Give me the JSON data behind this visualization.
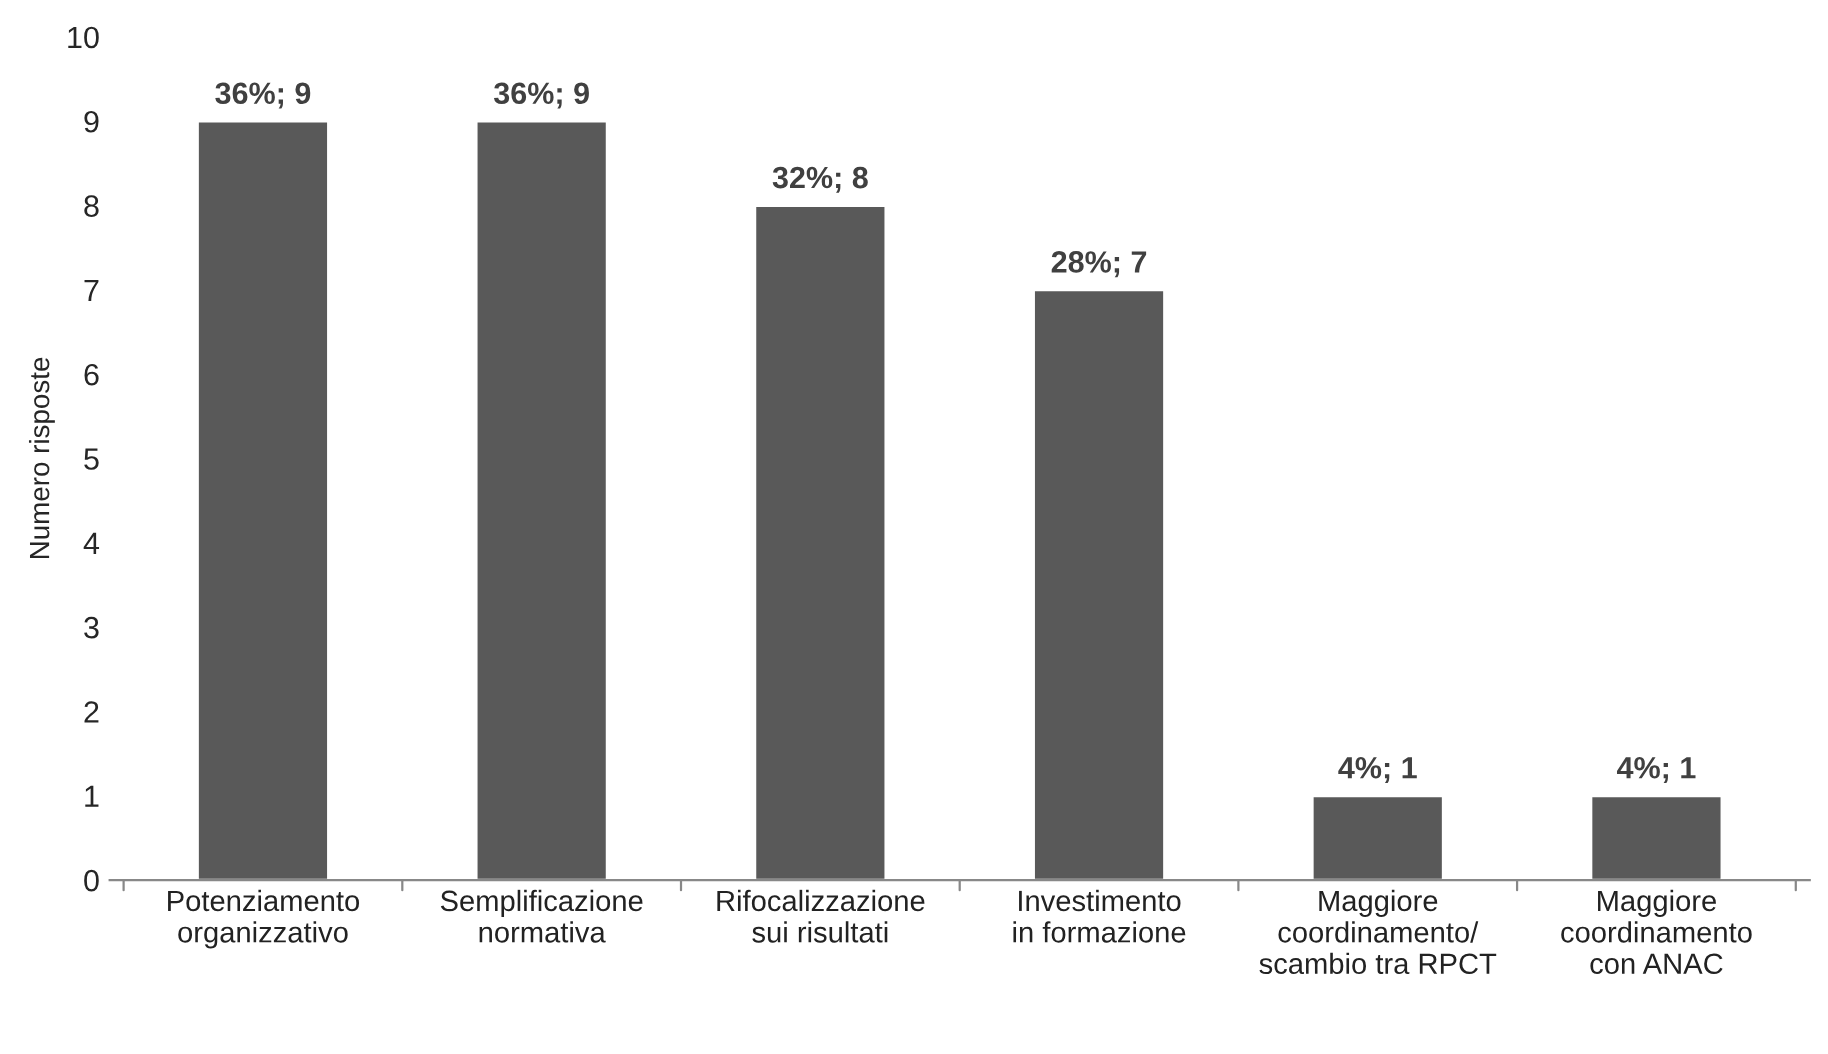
{
  "chart_data": {
    "type": "bar",
    "ylabel": "Numero risposte",
    "categories": [
      "Potenziamento\norganizzativo",
      "Semplificazione\nnormativa",
      "Rifocalizzazione\nsui risultati",
      "Investimento\nin formazione",
      "Maggiore\ncoordinamento/\nscambio tra RPCT",
      "Maggiore\ncoordinamento\ncon ANAC"
    ],
    "values": [
      9,
      9,
      8,
      7,
      1,
      1
    ],
    "value_labels": [
      "36%; 9",
      "36%; 9",
      "32%; 8",
      "28%; 7",
      "4%; 1",
      "4%; 1"
    ],
    "color": "#595959",
    "ylim": [
      0,
      10
    ],
    "yticks": [
      0,
      1,
      2,
      3,
      4,
      5,
      6,
      7,
      8,
      9,
      10
    ],
    "grid": false,
    "legend": false
  }
}
